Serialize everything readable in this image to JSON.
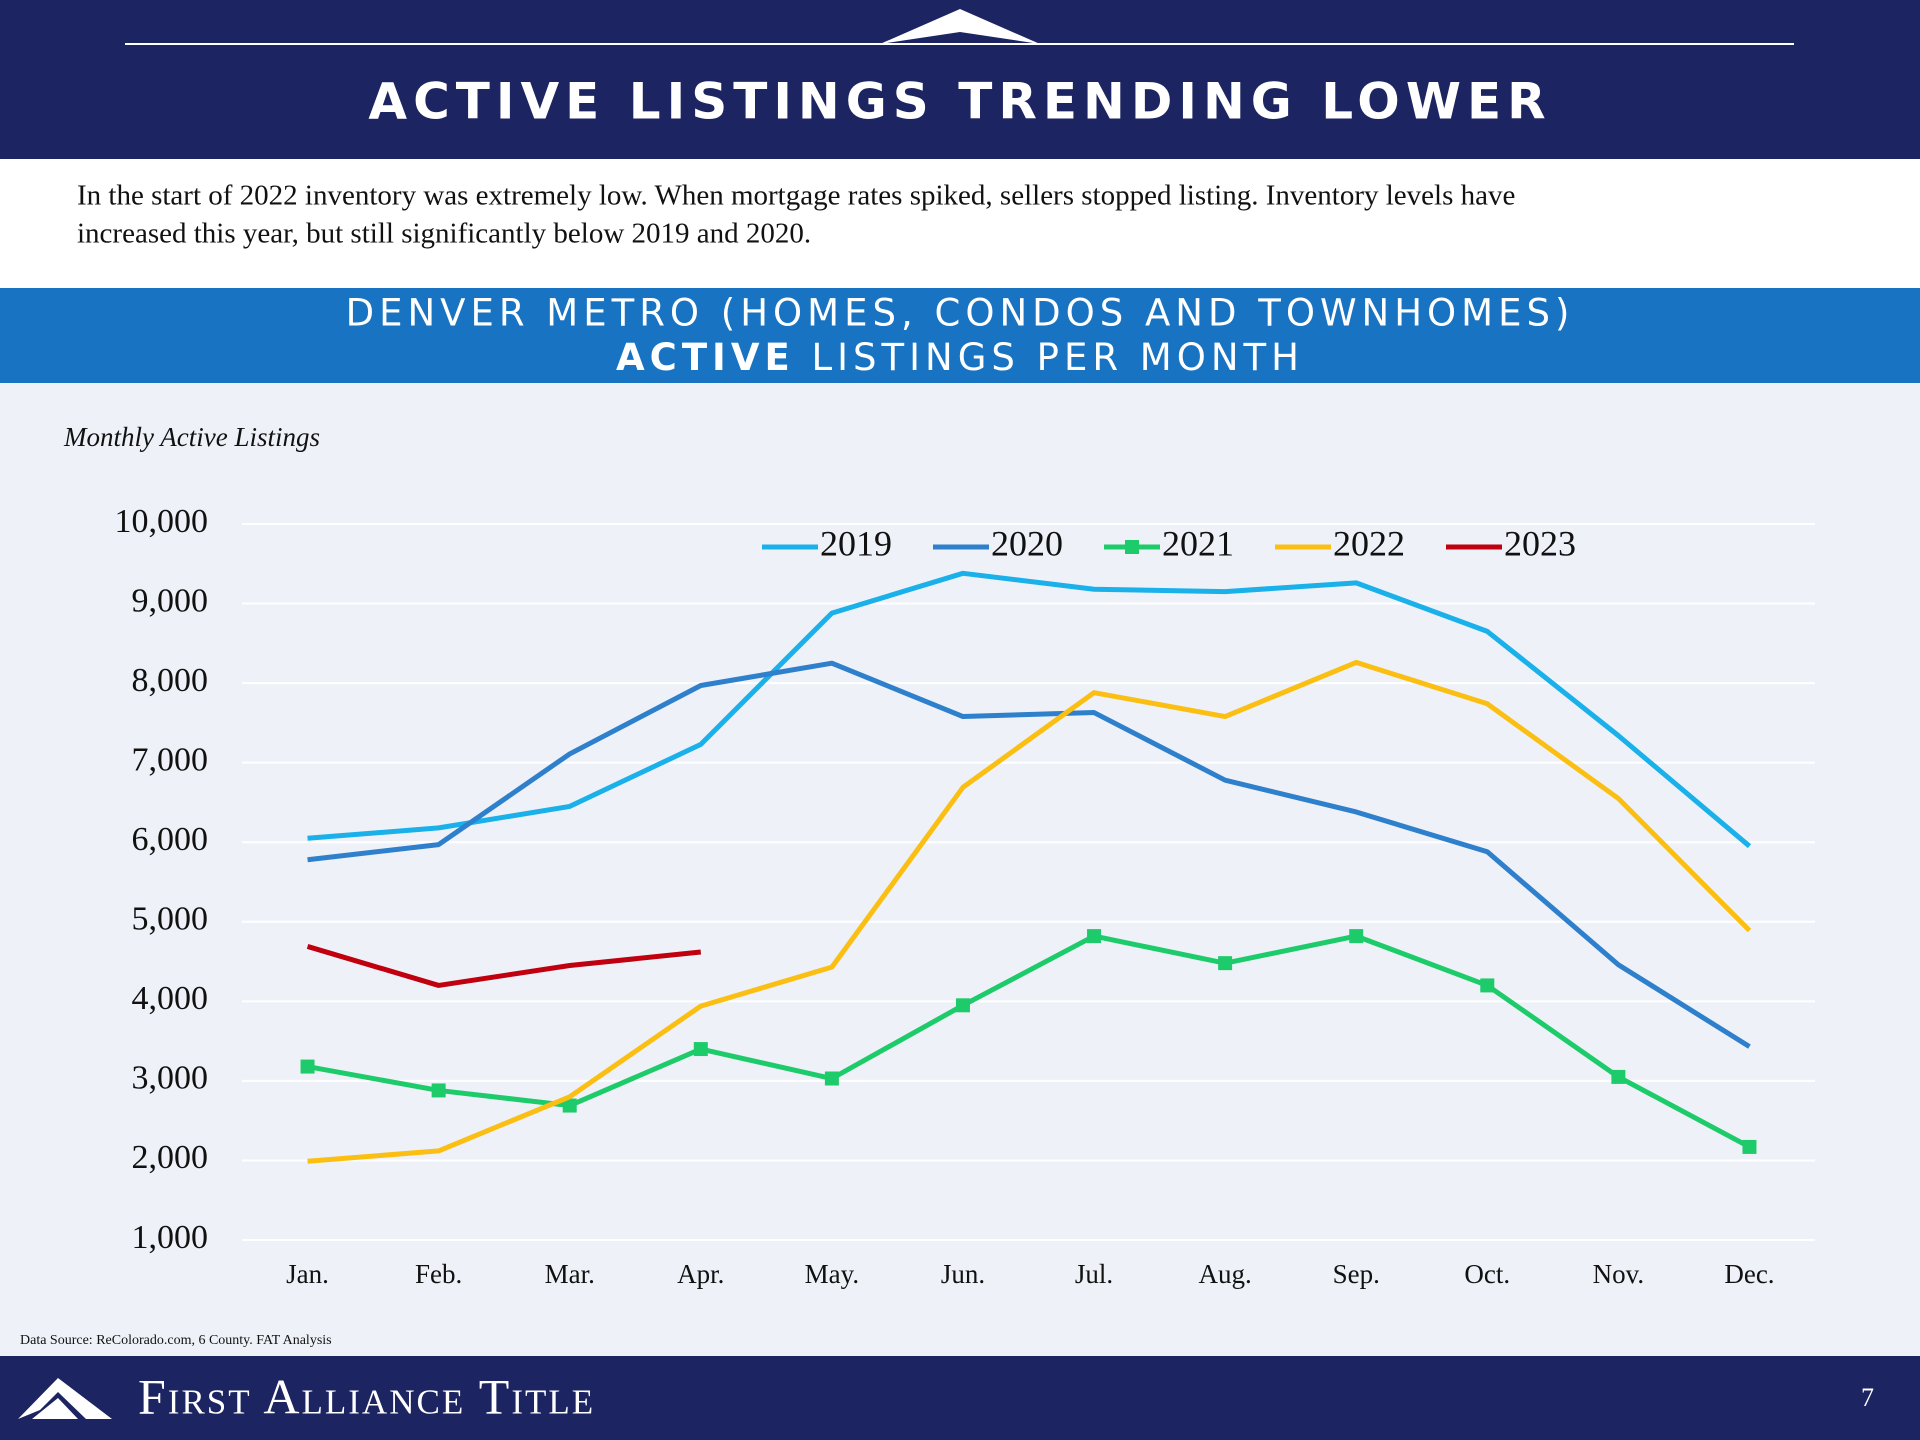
{
  "header": {
    "title": "ACTIVE LISTINGS TRENDING LOWER"
  },
  "intro": [
    "In the start of 2022 inventory was extremely low.  When mortgage rates spiked, sellers stopped listing.  Inventory levels have",
    "increased this year, but still significantly below 2019 and 2020."
  ],
  "banner": {
    "line1": "DENVER METRO (HOMES, CONDOS AND TOWNHOMES)",
    "line2_bold": "ACTIVE",
    "line2_rest": "LISTINGS PER MONTH"
  },
  "chart_data": {
    "type": "line",
    "ylabel": "Monthly Active Listings",
    "categories": [
      "Jan.",
      "Feb.",
      "Mar.",
      "Apr.",
      "May.",
      "Jun.",
      "Jul.",
      "Aug.",
      "Sep.",
      "Oct.",
      "Nov.",
      "Dec."
    ],
    "series": [
      {
        "name": "2019",
        "color": "#1ab0ea",
        "values": [
          6050,
          6180,
          6450,
          7230,
          8880,
          9380,
          9180,
          9150,
          9260,
          8650,
          7340,
          5950
        ]
      },
      {
        "name": "2020",
        "color": "#2e7fcc",
        "values": [
          5780,
          5970,
          7110,
          7970,
          8250,
          7580,
          7630,
          6780,
          6380,
          5880,
          4460,
          3430
        ]
      },
      {
        "name": "2021",
        "color": "#1ecb6a",
        "marker": "square",
        "values": [
          3180,
          2880,
          2690,
          3400,
          3030,
          3950,
          4820,
          4480,
          4820,
          4200,
          3050,
          2170
        ]
      },
      {
        "name": "2022",
        "color": "#fbbf14",
        "values": [
          1990,
          2120,
          2800,
          3940,
          4430,
          6690,
          7880,
          7580,
          8260,
          7740,
          6550,
          4890
        ]
      },
      {
        "name": "2023",
        "color": "#c0000f",
        "values": [
          4690,
          4200,
          4450,
          4620,
          null,
          null,
          null,
          null,
          null,
          null,
          null,
          null
        ]
      }
    ],
    "ylim": [
      1000,
      10000
    ],
    "yticks": [
      {
        "value": 1000,
        "label": "1,000"
      },
      {
        "value": 2000,
        "label": "2,000"
      },
      {
        "value": 3000,
        "label": "3,000"
      },
      {
        "value": 4000,
        "label": "4,000"
      },
      {
        "value": 5000,
        "label": "5,000"
      },
      {
        "value": 6000,
        "label": "6,000"
      },
      {
        "value": 7000,
        "label": "7,000"
      },
      {
        "value": 8000,
        "label": "8,000"
      },
      {
        "value": 9000,
        "label": "9,000"
      },
      {
        "value": 10000,
        "label": "10,000"
      }
    ],
    "grid": true,
    "legend": "top"
  },
  "footer": {
    "source": "Data Source: ReColorado.com, 6 County.  FAT Analysis",
    "brand": "First Alliance Title",
    "page": "7"
  }
}
